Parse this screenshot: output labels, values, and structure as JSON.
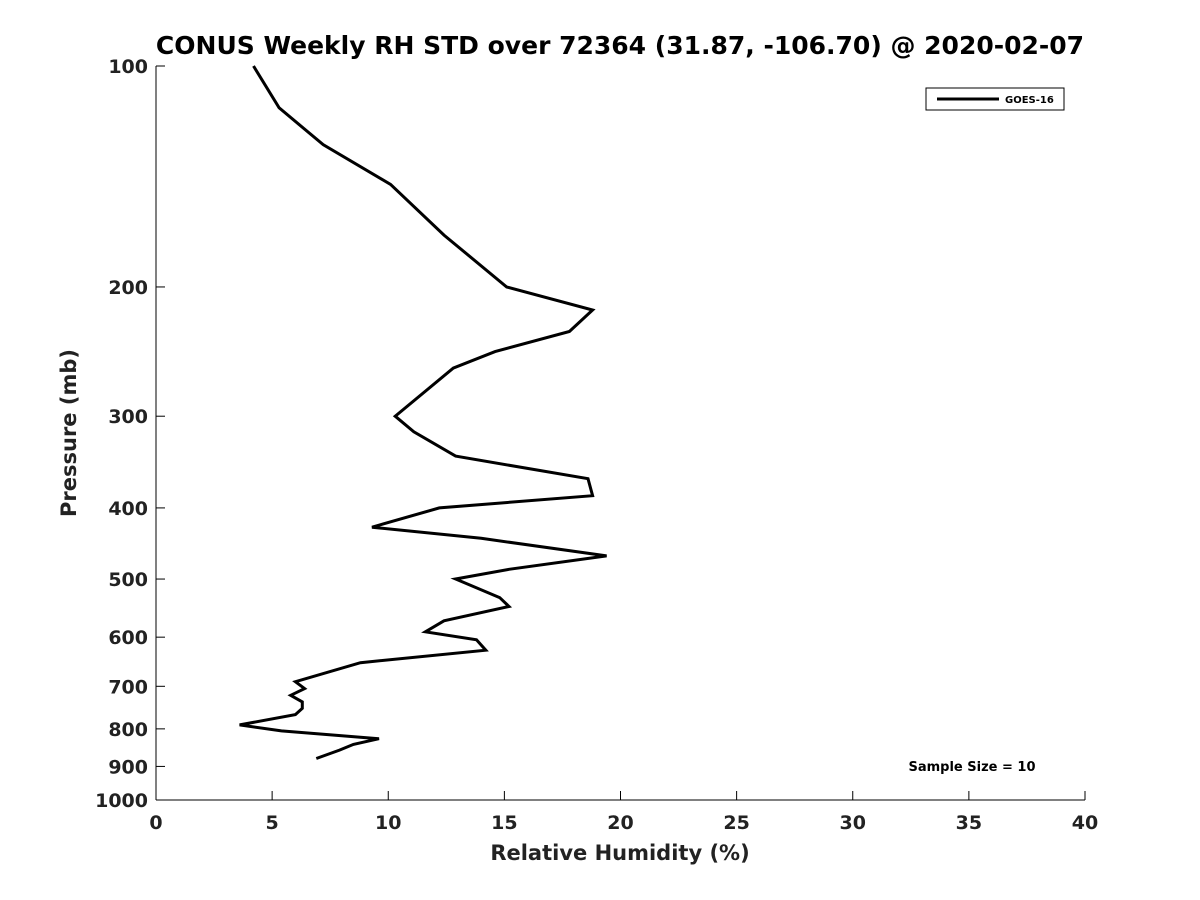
{
  "chart_data": {
    "type": "line",
    "title": "CONUS Weekly RH STD over 72364 (31.87, -106.70) @ 2020-02-07",
    "xlabel": "Relative Humidity (%)",
    "ylabel": "Pressure (mb)",
    "xlim": [
      0,
      40
    ],
    "ylim": [
      100,
      1000
    ],
    "y_scale": "log",
    "y_inverted": true,
    "x_ticks": [
      0,
      5,
      10,
      15,
      20,
      25,
      30,
      35,
      40
    ],
    "y_ticks": [
      100,
      200,
      300,
      400,
      500,
      600,
      700,
      800,
      900,
      1000
    ],
    "grid": false,
    "legend_position": "top-right",
    "series": [
      {
        "name": "GOES-16",
        "color": "#000000",
        "x": [
          4.2,
          5.3,
          7.2,
          10.1,
          12.4,
          15.1,
          18.8,
          17.8,
          14.6,
          12.8,
          10.3,
          11.1,
          12.9,
          18.6,
          18.8,
          12.2,
          9.3,
          14.0,
          19.4,
          15.2,
          12.9,
          14.8,
          15.2,
          12.4,
          11.6,
          13.8,
          14.2,
          8.8,
          6.0,
          6.4,
          5.8,
          6.3,
          6.3,
          6.0,
          3.6,
          5.4,
          9.6,
          8.5,
          7.9,
          6.9
        ],
        "y": [
          100,
          114,
          128,
          145,
          170,
          200,
          215,
          230,
          245,
          258,
          300,
          315,
          340,
          365,
          385,
          400,
          425,
          440,
          465,
          485,
          500,
          530,
          545,
          570,
          590,
          605,
          625,
          650,
          690,
          705,
          720,
          735,
          750,
          765,
          790,
          805,
          825,
          840,
          855,
          878
        ]
      }
    ],
    "annotations": [
      "Sample Size = 10"
    ]
  }
}
